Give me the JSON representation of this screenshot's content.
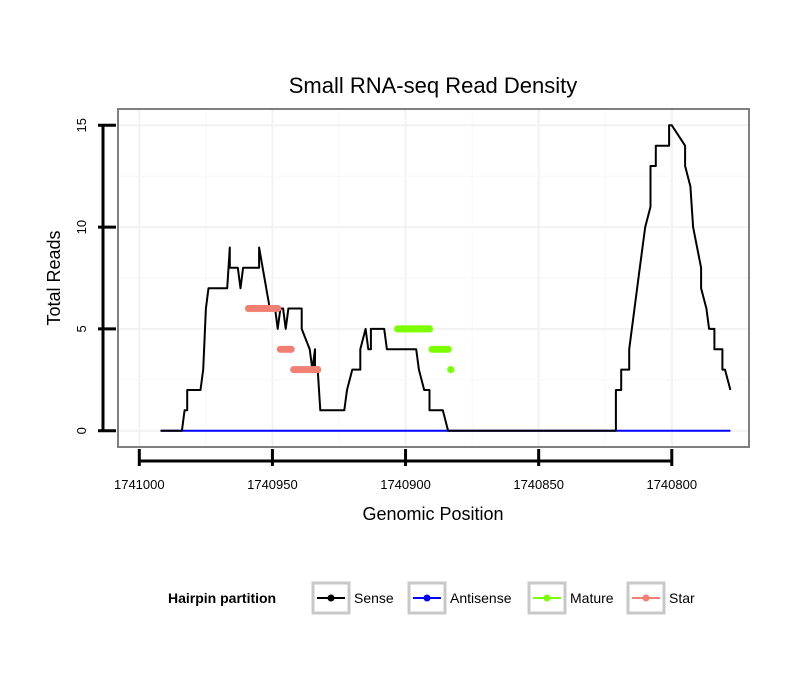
{
  "chart_data": {
    "type": "line",
    "title": "Small RNA-seq Read Density",
    "xlabel": "Genomic Position",
    "ylabel": "Total Reads",
    "x_reversed": true,
    "xlim": [
      1741008,
      1740771
    ],
    "ylim": [
      -0.8,
      15.8
    ],
    "x_ticks": [
      1741000,
      1740950,
      1740900,
      1740850,
      1740800
    ],
    "x_tick_labels": [
      "1741000",
      "1740950",
      "1740900",
      "1740850",
      "1740800"
    ],
    "y_ticks": [
      0,
      5,
      10,
      15
    ],
    "y_tick_labels": [
      "0",
      "5",
      "10",
      "15"
    ],
    "grid": true,
    "legend": {
      "title": "Hairpin partition",
      "placement": "bottom",
      "entries": [
        "Sense",
        "Antisense",
        "Mature",
        "Star"
      ]
    },
    "series": [
      {
        "name": "Sense",
        "color": "#000000",
        "style": "line",
        "x": [
          1740992,
          1740984,
          1740983,
          1740983,
          1740982,
          1740982,
          1740977,
          1740976,
          1740976,
          1740975,
          1740975,
          1740974,
          1740973,
          1740967,
          1740966,
          1740966,
          1740964,
          1740963,
          1740962,
          1740961,
          1740955,
          1740955,
          1740951,
          1740950,
          1740949,
          1740948,
          1740947,
          1740946,
          1740945,
          1740944,
          1740939,
          1740939,
          1740936,
          1740935,
          1740934,
          1740934,
          1740933,
          1740932,
          1740923,
          1740922,
          1740922,
          1740920,
          1740920,
          1740917,
          1740917,
          1740915,
          1740914,
          1740913,
          1740913,
          1740911,
          1740911,
          1740910,
          1740908,
          1740907,
          1740896,
          1740895,
          1740893,
          1740891,
          1740891,
          1740886,
          1740884,
          1740883,
          1740822,
          1740821,
          1740821,
          1740819,
          1740819,
          1740816,
          1740816,
          1740814,
          1740812,
          1740810,
          1740808,
          1740808,
          1740806,
          1740806,
          1740801,
          1740801,
          1740800,
          1740800,
          1740795,
          1740795,
          1740793,
          1740792,
          1740792,
          1740789,
          1740789,
          1740787,
          1740786,
          1740784,
          1740784,
          1740781,
          1740781,
          1740780,
          1740778
        ],
        "y": [
          0,
          0,
          1,
          1,
          1,
          2,
          2,
          3,
          3,
          6,
          6,
          7,
          7,
          7,
          9,
          8,
          8,
          8,
          7,
          8,
          8,
          9,
          6,
          6,
          6,
          5,
          6,
          6,
          5,
          6,
          6,
          5,
          4,
          3,
          4,
          3,
          3,
          1,
          1,
          2,
          2,
          3,
          3,
          3,
          4,
          5,
          4,
          4,
          5,
          5,
          5,
          5,
          5,
          4,
          4,
          3,
          2,
          2,
          1,
          1,
          0,
          0,
          0,
          0,
          2,
          2,
          3,
          3,
          4,
          6,
          8,
          10,
          11,
          13,
          13,
          14,
          14,
          15,
          15,
          15,
          14,
          13,
          12,
          10,
          10,
          8,
          7,
          6,
          5,
          5,
          4,
          4,
          3,
          3,
          2
        ]
      },
      {
        "name": "Antisense",
        "color": "#0000ff",
        "style": "line",
        "x": [
          1740992,
          1740778
        ],
        "y": [
          0,
          0
        ]
      },
      {
        "name": "Mature",
        "color": "#7cff00",
        "style": "points",
        "x": [
          1740903,
          1740902,
          1740901,
          1740900,
          1740899,
          1740898,
          1740897,
          1740896,
          1740895,
          1740894,
          1740893,
          1740892,
          1740891,
          1740890,
          1740889,
          1740888,
          1740887,
          1740886,
          1740885,
          1740884,
          1740883
        ],
        "y": [
          5,
          5,
          5,
          5,
          5,
          5,
          5,
          5,
          5,
          5,
          5,
          5,
          5,
          4,
          4,
          4,
          4,
          4,
          4,
          4,
          3
        ]
      },
      {
        "name": "Star",
        "color": "#f28072",
        "style": "points",
        "x": [
          1740959,
          1740958,
          1740957,
          1740956,
          1740955,
          1740954,
          1740953,
          1740952,
          1740951,
          1740950,
          1740949,
          1740948,
          1740947,
          1740946,
          1740945,
          1740944,
          1740943,
          1740942,
          1740941,
          1740940,
          1740939,
          1740938,
          1740937,
          1740936,
          1740935,
          1740934,
          1740933
        ],
        "y": [
          6,
          6,
          6,
          6,
          6,
          6,
          6,
          6,
          6,
          6,
          6,
          6,
          4,
          4,
          4,
          4,
          4,
          3,
          3,
          3,
          3,
          3,
          3,
          3,
          3,
          3,
          3
        ]
      }
    ]
  }
}
